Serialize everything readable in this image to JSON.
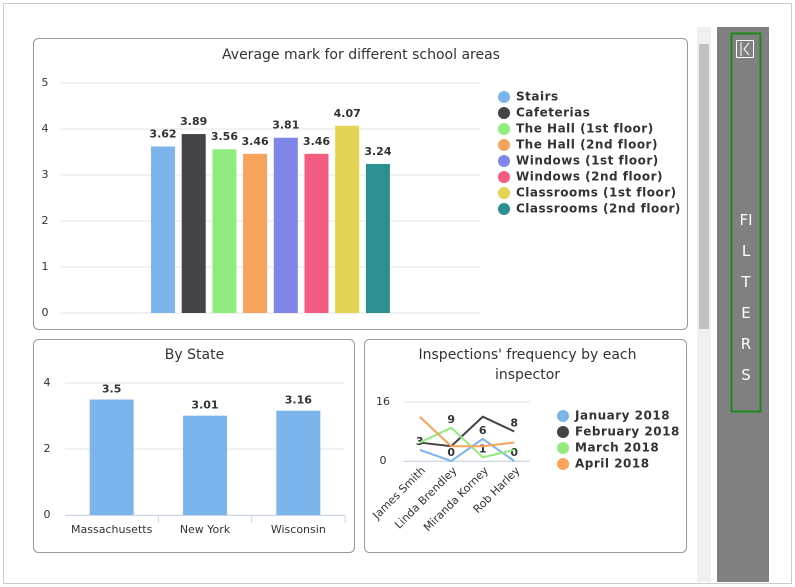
{
  "chart_data": [
    {
      "type": "bar",
      "title": "Average mark for different school areas",
      "categories": [
        "Stairs",
        "Cafeterias",
        "The Hall (1st floor)",
        "The Hall (2nd floor)",
        "Windows (1st floor)",
        "Windows (2nd floor)",
        "Classrooms (1st floor)",
        "Classrooms (2nd floor)"
      ],
      "values": [
        3.62,
        3.89,
        3.56,
        3.46,
        3.81,
        3.46,
        4.07,
        3.24
      ],
      "colors": [
        "#7cb5ec",
        "#434348",
        "#90ed7d",
        "#f7a35c",
        "#8085e9",
        "#f15c80",
        "#e4d354",
        "#2b908f"
      ],
      "ylim": [
        0,
        5
      ],
      "yticks": [
        0,
        1,
        2,
        3,
        4,
        5
      ],
      "grid": true,
      "legend": "right"
    },
    {
      "type": "bar",
      "title": "By State",
      "categories": [
        "Massachusetts",
        "New York",
        "Wisconsin"
      ],
      "values": [
        3.5,
        3.01,
        3.16
      ],
      "color": "#7cb5ec",
      "ylim": [
        0,
        4
      ],
      "yticks": [
        0,
        2,
        4
      ],
      "grid": true
    },
    {
      "type": "line",
      "title": "Inspections' frequency by each inspector",
      "categories": [
        "James Smith",
        "Linda Brendley",
        "Miranda Korney",
        "Rob Harley"
      ],
      "series": [
        {
          "name": "January 2018",
          "color": "#7cb5ec",
          "values": [
            3,
            0,
            6,
            0
          ],
          "value_labels": [
            "3",
            "0",
            "6",
            "0"
          ]
        },
        {
          "name": "February 2018",
          "color": "#434348",
          "values": [
            5,
            4,
            12,
            8
          ],
          "value_labels": [
            null,
            null,
            null,
            "8"
          ]
        },
        {
          "name": "March 2018",
          "color": "#90ed7d",
          "values": [
            5,
            9,
            1,
            3
          ],
          "value_labels": [
            null,
            "9",
            "1",
            null
          ]
        },
        {
          "name": "April 2018",
          "color": "#f7a35c",
          "values": [
            12,
            4,
            4,
            5
          ],
          "value_labels": [
            null,
            null,
            null,
            null
          ]
        }
      ],
      "ylim": [
        0,
        16
      ],
      "yticks": [
        0,
        16
      ],
      "grid": true,
      "legend": "right"
    }
  ],
  "sidebar": {
    "label": "FILTERS"
  }
}
